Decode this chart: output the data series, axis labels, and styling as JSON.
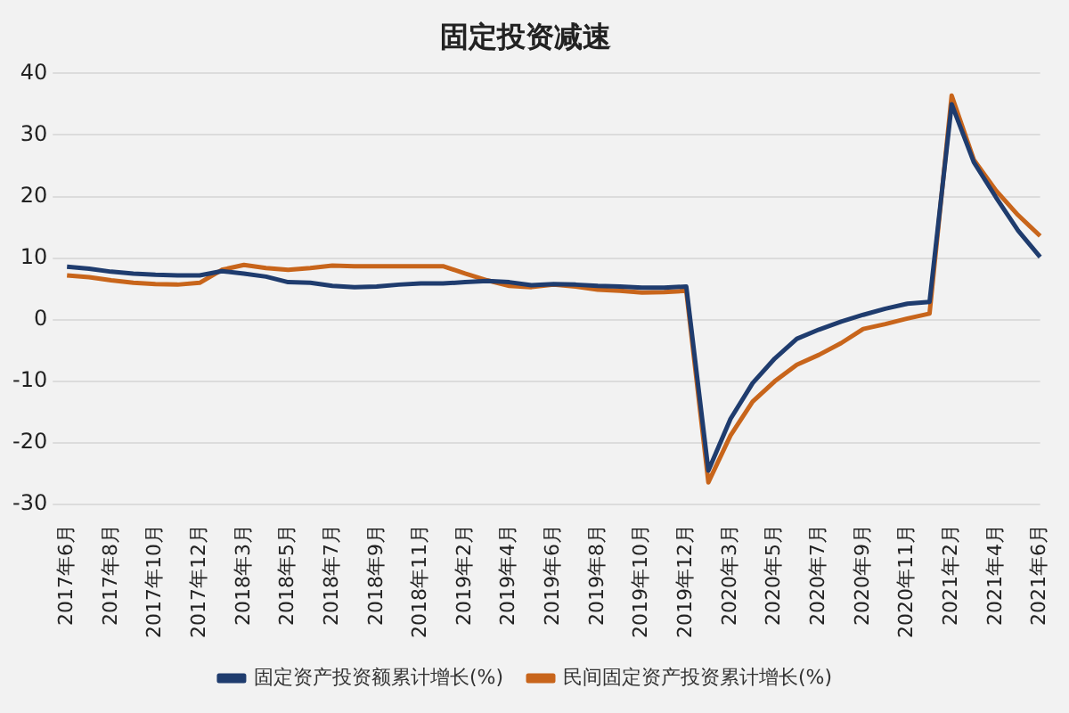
{
  "chart_data": {
    "type": "line",
    "title": "固定投资减速",
    "categories": [
      "2017年6月",
      null,
      "2017年8月",
      null,
      "2017年10月",
      null,
      "2017年12月",
      null,
      "2018年3月",
      null,
      "2018年5月",
      null,
      "2018年7月",
      null,
      "2018年9月",
      null,
      "2018年11月",
      null,
      "2019年2月",
      null,
      "2019年4月",
      null,
      "2019年6月",
      null,
      "2019年8月",
      null,
      "2019年10月",
      null,
      "2019年12月",
      null,
      "2020年3月",
      null,
      "2020年5月",
      null,
      "2020年7月",
      null,
      "2020年9月",
      null,
      "2020年11月",
      null,
      "2021年2月",
      null,
      "2021年4月",
      null,
      "2021年6月"
    ],
    "series": [
      {
        "name": "固定资产投资额累计增长(%)",
        "color": "#1f3c6e",
        "values": [
          8.6,
          8.3,
          7.8,
          7.5,
          7.3,
          7.2,
          7.2,
          7.9,
          7.5,
          7.0,
          6.1,
          6.0,
          5.5,
          5.3,
          5.4,
          5.7,
          5.9,
          5.9,
          6.1,
          6.3,
          6.1,
          5.6,
          5.8,
          5.7,
          5.5,
          5.4,
          5.2,
          5.2,
          5.4,
          -24.5,
          -16.1,
          -10.3,
          -6.3,
          -3.1,
          -1.6,
          -0.3,
          0.8,
          1.8,
          2.6,
          2.9,
          35.0,
          25.6,
          19.9,
          14.5,
          10.2
        ]
      },
      {
        "name": "民间固定资产投资累计增长(%)",
        "color": "#c8651b",
        "values": [
          7.2,
          6.9,
          6.4,
          6.0,
          5.8,
          5.7,
          6.0,
          8.1,
          8.9,
          8.4,
          8.1,
          8.4,
          8.8,
          8.7,
          8.7,
          8.7,
          8.7,
          8.7,
          7.5,
          6.4,
          5.5,
          5.3,
          5.7,
          5.4,
          4.9,
          4.7,
          4.4,
          4.5,
          4.7,
          -26.4,
          -18.8,
          -13.3,
          -10.0,
          -7.3,
          -5.7,
          -3.8,
          -1.5,
          -0.7,
          0.2,
          1.0,
          36.4,
          26.0,
          21.0,
          17.0,
          13.6
        ]
      }
    ],
    "ylim": [
      -30,
      40
    ],
    "yticks": [
      -30,
      -20,
      -10,
      0,
      10,
      20,
      30,
      40
    ],
    "grid": "y",
    "legend": "bottom",
    "marker": "none",
    "line_style": "solid"
  }
}
